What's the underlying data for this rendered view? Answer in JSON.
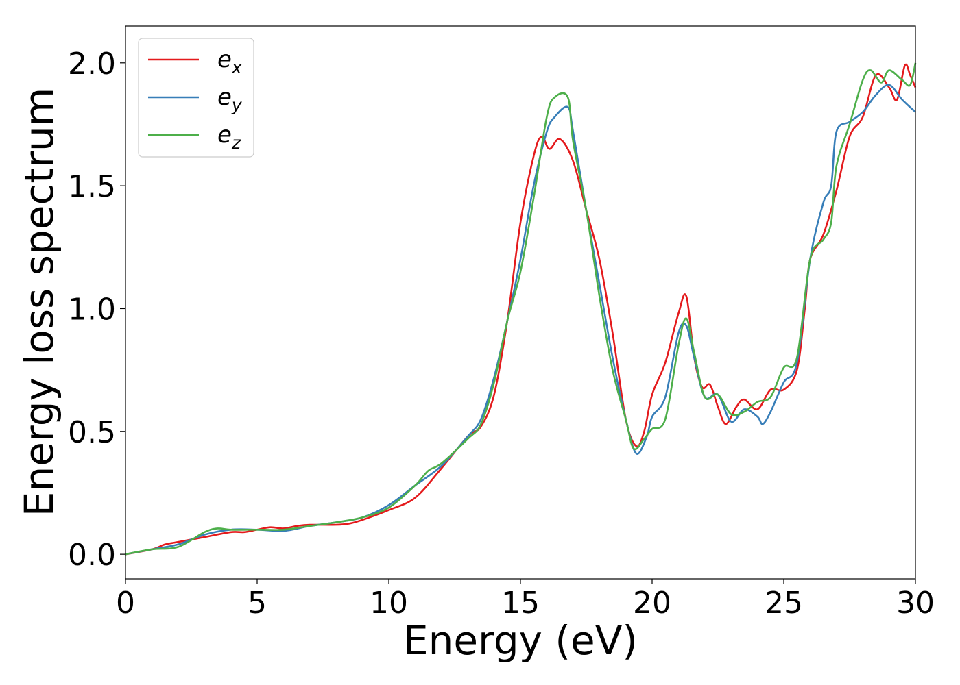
{
  "chart_data": {
    "type": "line",
    "xlabel": "Energy (eV)",
    "ylabel": "Energy loss spectrum",
    "xlim": [
      0,
      30
    ],
    "ylim": [
      -0.1,
      2.15
    ],
    "xticks": [
      0,
      5,
      10,
      15,
      20,
      25,
      30
    ],
    "yticks": [
      0.0,
      0.5,
      1.0,
      1.5,
      2.0
    ],
    "xtick_labels": [
      "0",
      "5",
      "10",
      "15",
      "20",
      "25",
      "30"
    ],
    "ytick_labels": [
      "0.0",
      "0.5",
      "1.0",
      "1.5",
      "2.0"
    ],
    "grid": false,
    "legend_position": "top-left",
    "series": [
      {
        "name": "e_x",
        "label_base": "e",
        "label_sub": "x",
        "color": "#e41a1c",
        "x": [
          0,
          1,
          1.5,
          2,
          3,
          4,
          4.5,
          5,
          5.5,
          6,
          6.5,
          7,
          8,
          8.5,
          9,
          10,
          11,
          12,
          13,
          13.5,
          14,
          14.5,
          15,
          15.5,
          15.8,
          16.1,
          16.5,
          17,
          17.5,
          18,
          18.5,
          19,
          19.4,
          19.7,
          20,
          20.5,
          21,
          21.3,
          21.6,
          21.9,
          22.2,
          22.5,
          22.8,
          23.2,
          23.5,
          24,
          24.5,
          25,
          25.5,
          25.8,
          26,
          26.5,
          27,
          27.5,
          28,
          28.5,
          29,
          29.3,
          29.6,
          29.8,
          30
        ],
        "y": [
          0,
          0.02,
          0.04,
          0.05,
          0.07,
          0.09,
          0.09,
          0.1,
          0.11,
          0.105,
          0.115,
          0.12,
          0.12,
          0.125,
          0.14,
          0.18,
          0.23,
          0.35,
          0.48,
          0.52,
          0.65,
          0.95,
          1.35,
          1.62,
          1.7,
          1.65,
          1.69,
          1.6,
          1.4,
          1.2,
          0.9,
          0.55,
          0.44,
          0.5,
          0.65,
          0.78,
          0.98,
          1.05,
          0.8,
          0.68,
          0.69,
          0.6,
          0.53,
          0.6,
          0.63,
          0.59,
          0.67,
          0.67,
          0.75,
          1.0,
          1.2,
          1.3,
          1.48,
          1.7,
          1.78,
          1.95,
          1.9,
          1.85,
          1.99,
          1.95,
          1.9
        ]
      },
      {
        "name": "e_y",
        "label_base": "e",
        "label_sub": "y",
        "color": "#377eb8",
        "x": [
          0,
          1,
          2,
          3,
          4,
          5,
          6,
          7,
          8,
          9,
          10,
          11,
          12,
          13,
          13.5,
          14,
          14.5,
          15,
          15.5,
          16,
          16.3,
          16.8,
          17,
          17.5,
          18,
          18.5,
          19,
          19.4,
          19.8,
          20,
          20.5,
          21,
          21.3,
          21.6,
          22,
          22.5,
          23,
          23.5,
          24,
          24.2,
          24.5,
          25,
          25.5,
          26,
          26.5,
          26.8,
          27,
          27.5,
          28,
          28.5,
          29,
          29.5,
          30
        ],
        "y": [
          0,
          0.02,
          0.04,
          0.08,
          0.1,
          0.1,
          0.095,
          0.115,
          0.13,
          0.15,
          0.2,
          0.28,
          0.36,
          0.48,
          0.55,
          0.72,
          0.95,
          1.2,
          1.5,
          1.72,
          1.78,
          1.82,
          1.72,
          1.4,
          1.1,
          0.8,
          0.55,
          0.41,
          0.48,
          0.56,
          0.64,
          0.9,
          0.93,
          0.8,
          0.64,
          0.65,
          0.54,
          0.59,
          0.56,
          0.53,
          0.58,
          0.7,
          0.78,
          1.2,
          1.43,
          1.5,
          1.72,
          1.76,
          1.8,
          1.87,
          1.91,
          1.85,
          1.8
        ]
      },
      {
        "name": "e_z",
        "label_base": "e",
        "label_sub": "z",
        "color": "#4daf4a",
        "x": [
          0,
          1,
          2,
          3,
          3.5,
          4,
          5,
          6,
          7,
          8,
          9,
          10,
          11,
          11.5,
          12,
          13,
          13.5,
          14,
          14.5,
          15,
          15.5,
          16,
          16.3,
          16.8,
          17,
          17.5,
          18,
          18.5,
          19,
          19.3,
          19.7,
          20,
          20.5,
          21,
          21.3,
          21.6,
          22,
          22.5,
          23,
          23.5,
          24,
          24.5,
          25,
          25.5,
          26,
          26.5,
          26.8,
          27,
          27.5,
          28,
          28.3,
          28.7,
          29,
          29.5,
          29.8,
          30
        ],
        "y": [
          0,
          0.02,
          0.03,
          0.09,
          0.105,
          0.1,
          0.1,
          0.1,
          0.115,
          0.13,
          0.15,
          0.19,
          0.28,
          0.34,
          0.37,
          0.47,
          0.53,
          0.7,
          0.95,
          1.15,
          1.45,
          1.78,
          1.86,
          1.86,
          1.68,
          1.4,
          1.05,
          0.75,
          0.55,
          0.43,
          0.47,
          0.51,
          0.55,
          0.85,
          0.96,
          0.82,
          0.64,
          0.65,
          0.57,
          0.58,
          0.62,
          0.64,
          0.76,
          0.8,
          1.2,
          1.28,
          1.35,
          1.58,
          1.75,
          1.93,
          1.97,
          1.92,
          1.97,
          1.93,
          1.91,
          2.0
        ]
      }
    ]
  }
}
